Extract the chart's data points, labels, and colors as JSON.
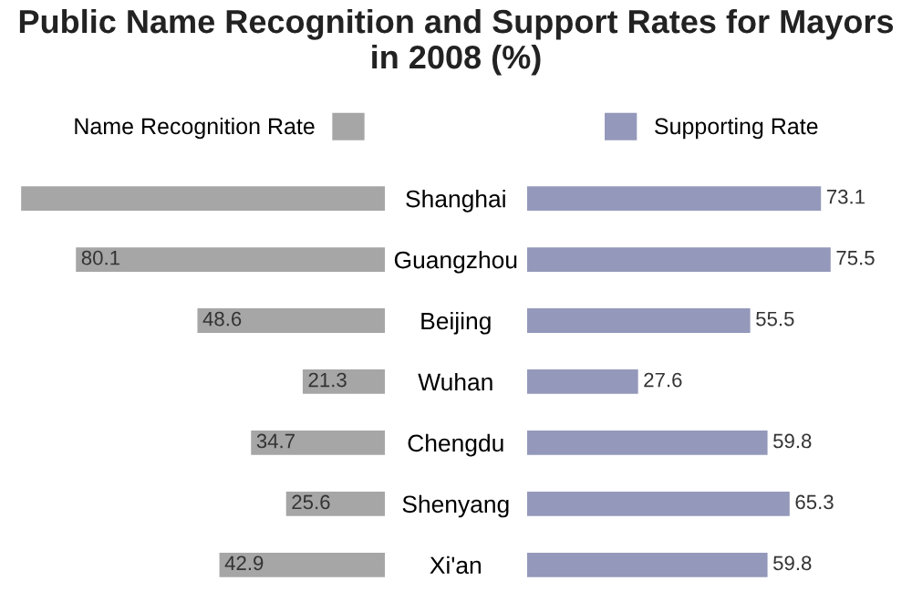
{
  "chart_data": [
    {
      "type": "bar",
      "orientation": "horizontal",
      "title": "Public Name Recognition and Support Rates for Mayors in 2008 (%)",
      "categories": [
        "Shanghai",
        "Guangzhou",
        "Beijing",
        "Wuhan",
        "Chengdu",
        "Shenyang",
        "Xi'an"
      ],
      "series": [
        {
          "name": "Name Recognition Rate",
          "color": "#a6a6a6",
          "values": [
            94.3,
            80.1,
            48.6,
            21.3,
            34.7,
            25.6,
            42.9
          ],
          "value_labels": [
            null,
            "80.1",
            "48.6",
            "21.3",
            "34.7",
            "25.6",
            "42.9"
          ]
        }
      ],
      "xlim": [
        96,
        0
      ],
      "tick_labels": "y",
      "legend": "top",
      "grid": false
    },
    {
      "type": "bar",
      "orientation": "horizontal",
      "series": [
        {
          "name": "Supporting Rate",
          "color": "#9499bb",
          "values": [
            73.1,
            75.5,
            55.5,
            27.6,
            59.8,
            65.3,
            59.8
          ]
        }
      ],
      "data_labels": true,
      "legend": "top",
      "grid": false
    }
  ]
}
